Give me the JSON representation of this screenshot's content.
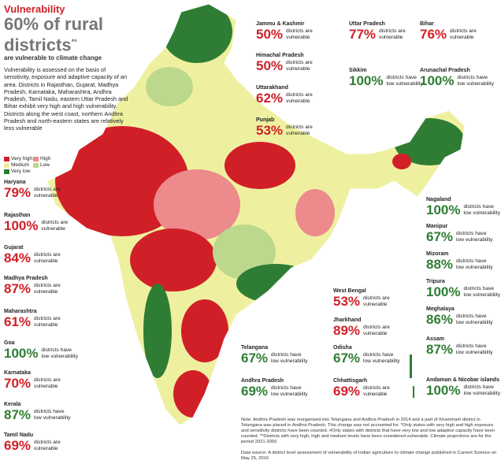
{
  "header": {
    "kicker": "Vulnerability",
    "headline": "60% of rural districts",
    "mark": "**",
    "subhead": "are vulnerable to climate change",
    "description": "Vulnerability is assessed on the basis of sensitivity, exposure and adaptive capacity of an area. Districts in Rajasthan, Gujarat, Madhya Pradesh, Karnataka, Maharashtra, Andhra Pradesh, Tamil Nadu, eastern Uttar Pradesh and Bihar exhibit very high and high vulnerability. Districts along the west coast, northern Andhra Pradesh and north-eastern states are relatively less vulnerable"
  },
  "legend": [
    {
      "label": "Very high",
      "color": "#d11f27"
    },
    {
      "label": "High",
      "color": "#ec8a8c"
    },
    {
      "label": "Medium",
      "color": "#eef0a0"
    },
    {
      "label": "Low",
      "color": "#bcd88c"
    },
    {
      "label": "Very low",
      "color": "#2f7d34"
    }
  ],
  "states": [
    {
      "name": "Jammu & Kashmir",
      "value": "50%",
      "lines": [
        "districts are",
        "vulnerable"
      ],
      "color": "#d11f27"
    },
    {
      "name": "Himachal Pradesh",
      "value": "50%",
      "lines": [
        "districts are",
        "vulnerable"
      ],
      "color": "#d11f27"
    },
    {
      "name": "Uttarakhand",
      "value": "62%",
      "lines": [
        "districts are",
        "vulnerable"
      ],
      "color": "#d11f27"
    },
    {
      "name": "Punjab",
      "value": "53%",
      "lines": [
        "districts are",
        "vulnerable"
      ],
      "color": "#d11f27"
    },
    {
      "name": "Uttar Pradesh",
      "value": "77%",
      "lines": [
        "districts are",
        "vulnerable"
      ],
      "color": "#d11f27"
    },
    {
      "name": "Bihar",
      "value": "76%",
      "lines": [
        "districts are",
        "vulnerable"
      ],
      "color": "#d11f27"
    },
    {
      "name": "Sikkim",
      "value": "100%",
      "lines": [
        "districts have",
        "low vulnerability"
      ],
      "color": "#2f7d34"
    },
    {
      "name": "Arunachal Pradesh",
      "value": "100%",
      "lines": [
        "districts have",
        "low vulnerability"
      ],
      "color": "#2f7d34"
    },
    {
      "name": "Haryana",
      "value": "79%",
      "lines": [
        "districts are",
        "vulnerable"
      ],
      "color": "#d11f27"
    },
    {
      "name": "Rajasthan",
      "value": "100%",
      "lines": [
        "districts are",
        "vulnerable"
      ],
      "color": "#d11f27"
    },
    {
      "name": "Gujarat",
      "value": "84%",
      "lines": [
        "districts are",
        "vulnerable"
      ],
      "color": "#d11f27"
    },
    {
      "name": "Madhya Pradesh",
      "value": "87%",
      "lines": [
        "districts are",
        "vulnerable"
      ],
      "color": "#d11f27"
    },
    {
      "name": "Maharashtra",
      "value": "61%",
      "lines": [
        "districts are",
        "vulnerable"
      ],
      "color": "#d11f27"
    },
    {
      "name": "Goa",
      "value": "100%",
      "lines": [
        "districts have",
        "low vulnerability"
      ],
      "color": "#2f7d34"
    },
    {
      "name": "Karnataka",
      "value": "70%",
      "lines": [
        "districts are",
        "vulnerable"
      ],
      "color": "#d11f27"
    },
    {
      "name": "Kerala",
      "value": "87%",
      "lines": [
        "districts have",
        "low vulnerability"
      ],
      "color": "#2f7d34"
    },
    {
      "name": "Tamil Nadu",
      "value": "69%",
      "lines": [
        "districts are",
        "vulnerable"
      ],
      "color": "#d11f27"
    },
    {
      "name": "Nagaland",
      "value": "100%",
      "lines": [
        "districts have",
        "low vulnerability"
      ],
      "color": "#2f7d34"
    },
    {
      "name": "Manipur",
      "value": "67%",
      "lines": [
        "districts have",
        "low vulnerability"
      ],
      "color": "#2f7d34"
    },
    {
      "name": "Mizoram",
      "value": "88%",
      "lines": [
        "districts have",
        "low vulnerability"
      ],
      "color": "#2f7d34"
    },
    {
      "name": "Tripura",
      "value": "100%",
      "lines": [
        "districts have",
        "low vulnerability"
      ],
      "color": "#2f7d34"
    },
    {
      "name": "Meghalaya",
      "value": "86%",
      "lines": [
        "districts have",
        "low vulnerability"
      ],
      "color": "#2f7d34"
    },
    {
      "name": "Assam",
      "value": "87%",
      "lines": [
        "districts have",
        "low vulnerability"
      ],
      "color": "#2f7d34"
    },
    {
      "name": "Andaman & Nicobar islands",
      "value": "100%",
      "lines": [
        "districts have",
        "low vulnerability"
      ],
      "color": "#2f7d34"
    },
    {
      "name": "West Bengal",
      "value": "53%",
      "lines": [
        "districts are",
        "vulnerable"
      ],
      "color": "#d11f27"
    },
    {
      "name": "Jharkhand",
      "value": "89%",
      "lines": [
        "districts are",
        "vulnerable"
      ],
      "color": "#d11f27"
    },
    {
      "name": "Telangana",
      "value": "67%",
      "lines": [
        "districts have",
        "low vulnerability"
      ],
      "color": "#2f7d34"
    },
    {
      "name": "Odisha",
      "value": "67%",
      "lines": [
        "districts have",
        "low vulnerability"
      ],
      "color": "#2f7d34"
    },
    {
      "name": "Andhra Pradesh",
      "value": "69%",
      "lines": [
        "districts have",
        "low vulnerability"
      ],
      "color": "#2f7d34"
    },
    {
      "name": "Chhattisgarh",
      "value": "69%",
      "lines": [
        "districts are",
        "vulnerable"
      ],
      "color": "#d11f27"
    }
  ],
  "notes": {
    "note": "Note: Andhra Pradesh was reorganised into Telangana and Andhra Pradesh in 2014 and a part of Khammam district in Telangana was placed in Andhra Pradesh. This change was not accounted for. *Only states with very high and high exposure and sensitivity districts have been counted. #Only states with districts that have very low and low adaptive capacity have been counted. **Districts with very high, high and medium levels have been considered vulnerable. Climate projections are for the period 2021-2050",
    "source": "Data source: A district level assessment of vulnerability of Indian agriculture to climate change published in Current Science on May 25, 2016"
  }
}
